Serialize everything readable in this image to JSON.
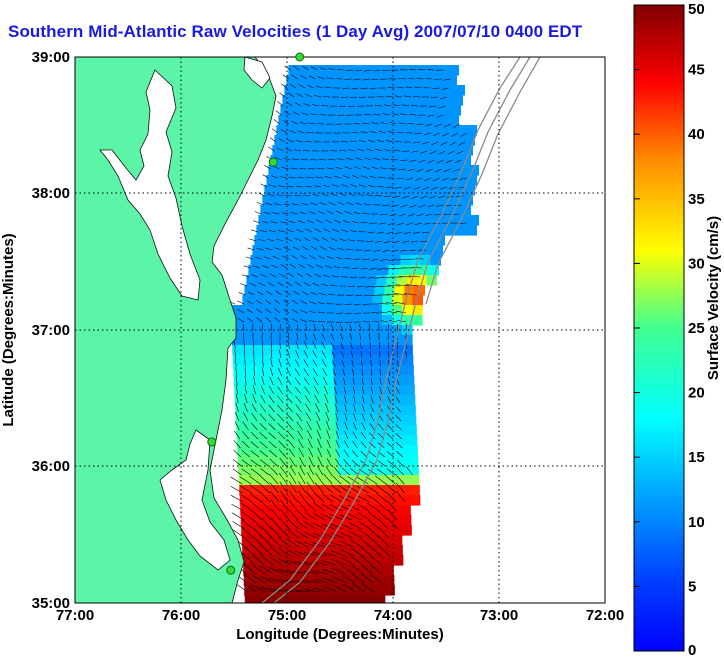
{
  "title": "Southern Mid-Atlantic Raw Velocities (1 Day Avg) 2007/07/10 0400 EDT",
  "map": {
    "xlabel": "Longitude (Degrees:Minutes)",
    "ylabel": "Latitude (Degrees:Minutes)",
    "x_ticks": [
      "77:00",
      "76:00",
      "75:00",
      "74:00",
      "73:00",
      "72:00"
    ],
    "y_ticks": [
      "39:00",
      "38:00",
      "37:00",
      "36:00",
      "35:00"
    ],
    "x_range_deg_w": [
      77,
      72
    ],
    "y_range_deg_n": [
      35,
      39
    ],
    "land_color": "#5cf5a8",
    "grid": "dotted"
  },
  "colorbar": {
    "label": "Surface Velocity (cm/s)",
    "ticks": [
      "0",
      "5",
      "10",
      "15",
      "20",
      "25",
      "30",
      "35",
      "40",
      "45",
      "50"
    ],
    "range": [
      0,
      50
    ],
    "colormap": "jet"
  },
  "stations": [
    {
      "lon": -74.88,
      "lat": 39.0
    },
    {
      "lon": -75.13,
      "lat": 38.23
    },
    {
      "lon": -75.71,
      "lat": 36.18
    },
    {
      "lon": -75.53,
      "lat": 35.24
    }
  ]
}
